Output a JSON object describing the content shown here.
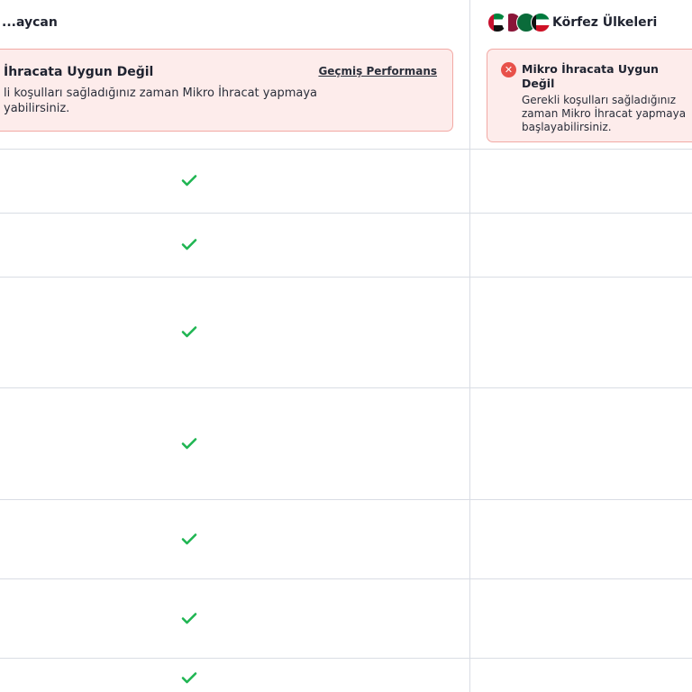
{
  "columns": [
    {
      "header": "...aycan",
      "header_visible": "aycan",
      "status": {
        "title": "İhracata Uygun Değil",
        "text_lines": [
          "li koşulları sağladığınız zaman Mikro İhracat yapmaya",
          "yabilirsiniz."
        ],
        "link": "Geçmiş Performans"
      },
      "rows": [
        "check",
        "check",
        "check",
        "check",
        "check",
        "check",
        "check"
      ]
    },
    {
      "header": "Körfez Ülkeleri",
      "flags": [
        "uae-flag",
        "qatar-flag",
        "saudi-flag",
        "kuwait-flag"
      ],
      "status": {
        "icon": "x-circle-icon",
        "title": "Mikro İhracata Uygun Değil",
        "text_lines": [
          "Gerekli koşulları sağladığınız zaman Mikro İhracat yapmaya",
          "başlayabilirsiniz."
        ]
      }
    }
  ],
  "colors": {
    "check": "#1fb552",
    "error": "#e8514a",
    "card_bg": "#fdeceb",
    "card_border": "#f2a9a4"
  }
}
